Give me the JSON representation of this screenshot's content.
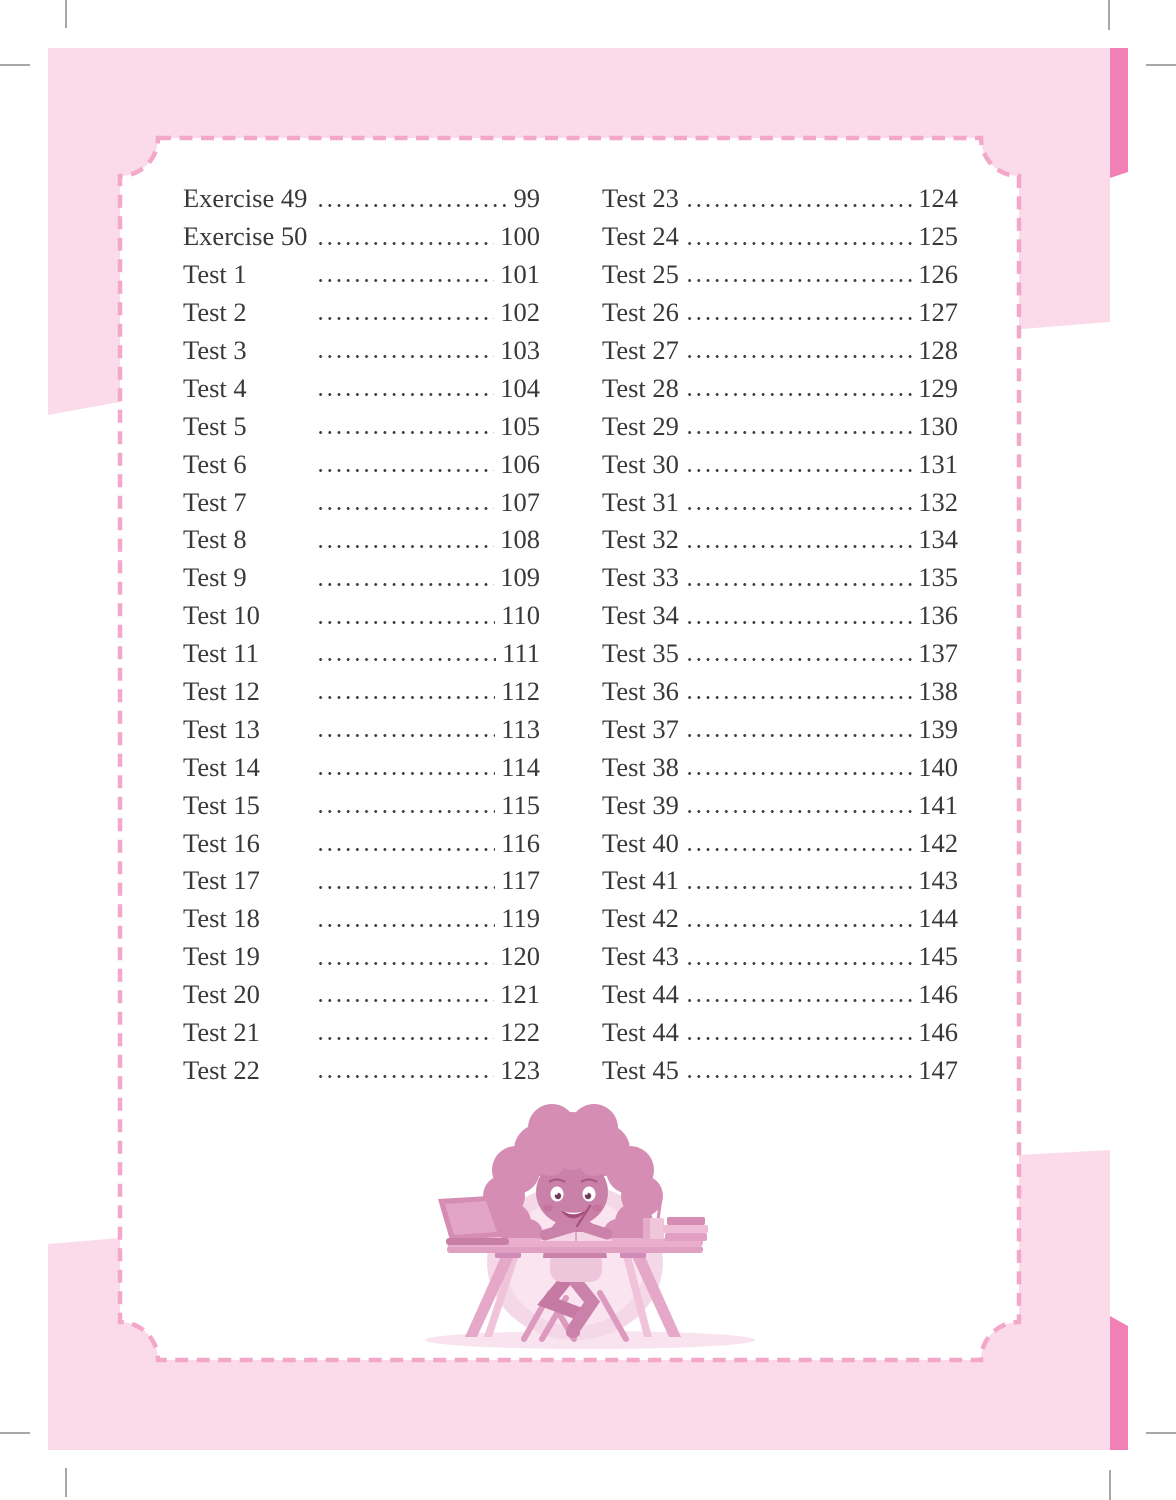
{
  "page": {
    "kind": "book-table-of-contents",
    "language": "en"
  },
  "colors": {
    "margin_pink": "#fbdbe9",
    "dash_pink": "#f3a7c9",
    "tab_pink": "#f080b6",
    "text": "#383838",
    "crop_mark_gray": "#a8a8a8",
    "illustration_main": "#d58db4",
    "illustration_light": "#f3d2e4"
  },
  "toc": {
    "left_column": [
      {
        "label": "Exercise 49",
        "page": "99"
      },
      {
        "label": "Exercise 50",
        "page": "100"
      },
      {
        "label": "Test 1",
        "page": "101"
      },
      {
        "label": "Test 2",
        "page": "102"
      },
      {
        "label": "Test 3",
        "page": "103"
      },
      {
        "label": "Test 4",
        "page": "104"
      },
      {
        "label": "Test 5",
        "page": "105"
      },
      {
        "label": "Test 6",
        "page": "106"
      },
      {
        "label": "Test 7",
        "page": "107"
      },
      {
        "label": "Test 8",
        "page": "108"
      },
      {
        "label": "Test 9",
        "page": "109"
      },
      {
        "label": "Test 10",
        "page": "110"
      },
      {
        "label": "Test 11",
        "page": "111"
      },
      {
        "label": "Test 12",
        "page": "112"
      },
      {
        "label": "Test 13",
        "page": "113"
      },
      {
        "label": "Test 14",
        "page": "114"
      },
      {
        "label": "Test 15",
        "page": "115"
      },
      {
        "label": "Test 16",
        "page": "116"
      },
      {
        "label": "Test 17",
        "page": "117"
      },
      {
        "label": "Test 18",
        "page": "119"
      },
      {
        "label": "Test 19",
        "page": "120"
      },
      {
        "label": "Test 20",
        "page": "121"
      },
      {
        "label": "Test 21",
        "page": "122"
      },
      {
        "label": "Test 22",
        "page": "123"
      }
    ],
    "right_column": [
      {
        "label": "Test 23",
        "page": "124"
      },
      {
        "label": "Test 24",
        "page": "125"
      },
      {
        "label": "Test 25",
        "page": "126"
      },
      {
        "label": "Test 26",
        "page": "127"
      },
      {
        "label": "Test 27",
        "page": "128"
      },
      {
        "label": "Test 28",
        "page": "129"
      },
      {
        "label": "Test 29",
        "page": "130"
      },
      {
        "label": "Test 30",
        "page": "131"
      },
      {
        "label": "Test 31",
        "page": "132"
      },
      {
        "label": "Test 32",
        "page": "134"
      },
      {
        "label": "Test 33",
        "page": "135"
      },
      {
        "label": "Test 34",
        "page": "136"
      },
      {
        "label": "Test 35",
        "page": "137"
      },
      {
        "label": "Test 36",
        "page": "138"
      },
      {
        "label": "Test 37",
        "page": "139"
      },
      {
        "label": "Test 38",
        "page": "140"
      },
      {
        "label": "Test 39",
        "page": "141"
      },
      {
        "label": "Test 40",
        "page": "142"
      },
      {
        "label": "Test 41",
        "page": "143"
      },
      {
        "label": "Test 42",
        "page": "144"
      },
      {
        "label": "Test 43",
        "page": "145"
      },
      {
        "label": "Test 44",
        "page": "146"
      },
      {
        "label": "Test 44",
        "page": "146"
      },
      {
        "label": "Test 45",
        "page": "147"
      }
    ]
  },
  "illustration": {
    "description": "child with curly hair writing at a desk with laptop, pencil cup and books"
  }
}
